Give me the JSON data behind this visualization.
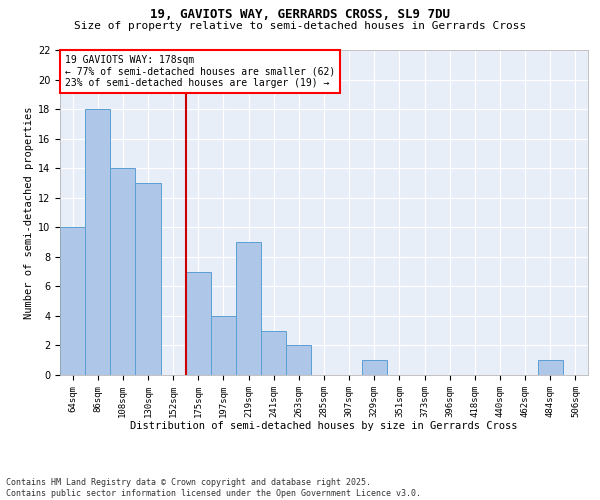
{
  "title1": "19, GAVIOTS WAY, GERRARDS CROSS, SL9 7DU",
  "title2": "Size of property relative to semi-detached houses in Gerrards Cross",
  "xlabel": "Distribution of semi-detached houses by size in Gerrards Cross",
  "ylabel": "Number of semi-detached properties",
  "categories": [
    "64sqm",
    "86sqm",
    "108sqm",
    "130sqm",
    "152sqm",
    "175sqm",
    "197sqm",
    "219sqm",
    "241sqm",
    "263sqm",
    "285sqm",
    "307sqm",
    "329sqm",
    "351sqm",
    "373sqm",
    "396sqm",
    "418sqm",
    "440sqm",
    "462sqm",
    "484sqm",
    "506sqm"
  ],
  "values": [
    10,
    18,
    14,
    13,
    0,
    7,
    4,
    9,
    3,
    2,
    0,
    0,
    1,
    0,
    0,
    0,
    0,
    0,
    0,
    1,
    0
  ],
  "bar_color": "#aec6e8",
  "bar_edge_color": "#5a9fd4",
  "vline_x": 4.5,
  "vline_color": "#cc0000",
  "ylim": [
    0,
    22
  ],
  "yticks": [
    0,
    2,
    4,
    6,
    8,
    10,
    12,
    14,
    16,
    18,
    20,
    22
  ],
  "annotation_title": "19 GAVIOTS WAY: 178sqm",
  "annotation_line1": "← 77% of semi-detached houses are smaller (62)",
  "annotation_line2": "23% of semi-detached houses are larger (19) →",
  "footer1": "Contains HM Land Registry data © Crown copyright and database right 2025.",
  "footer2": "Contains public sector information licensed under the Open Government Licence v3.0.",
  "bg_color": "#e8eef8",
  "title_fontsize": 9,
  "subtitle_fontsize": 8,
  "annotation_fontsize": 7,
  "tick_fontsize": 6.5,
  "footer_fontsize": 6,
  "axis_label_fontsize": 7.5
}
